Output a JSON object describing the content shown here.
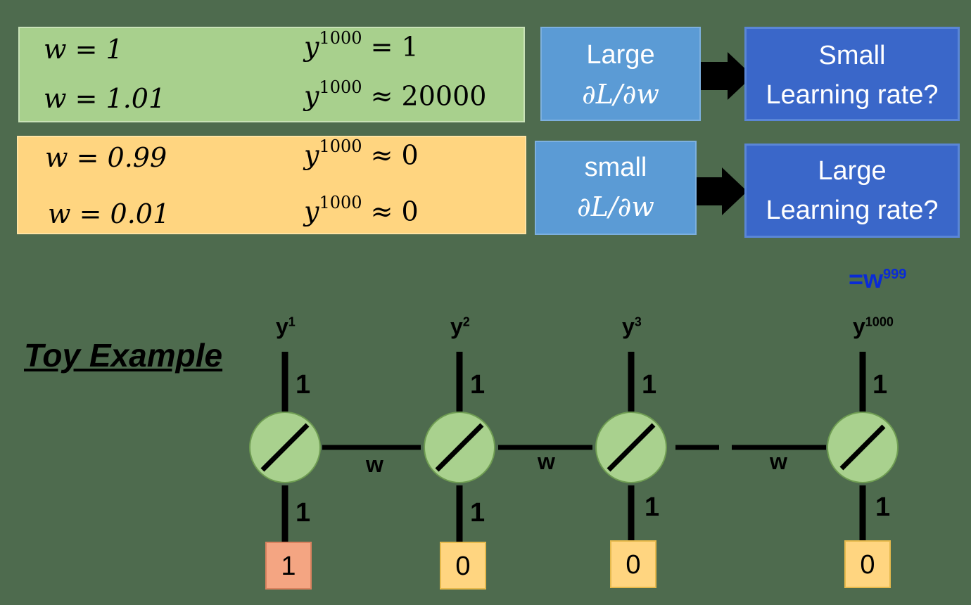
{
  "rows_top": [
    {
      "lhs": "w = 1",
      "rhs_base": "y",
      "rhs_sup": "1000",
      "rhs_tail": " = 1"
    },
    {
      "lhs": "w = 1.01",
      "rhs_base": "y",
      "rhs_sup": "1000",
      "rhs_tail": " ≈ 20000"
    }
  ],
  "rows_bottom": [
    {
      "lhs": "w = 0.99",
      "rhs_base": "y",
      "rhs_sup": "1000",
      "rhs_tail": " ≈ 0"
    },
    {
      "lhs": "w = 0.01",
      "rhs_base": "y",
      "rhs_sup": "1000",
      "rhs_tail": " ≈ 0"
    }
  ],
  "gradient_large": {
    "line1": "Large",
    "line2": "∂L/∂w"
  },
  "gradient_small": {
    "line1": "small",
    "line2": "∂L/∂w"
  },
  "lr_small": {
    "line1": "Small",
    "line2": "Learning rate?"
  },
  "lr_large": {
    "line1": "Large",
    "line2": "Learning rate?"
  },
  "toy_title": "Toy Example",
  "w999": {
    "base": "=w",
    "sup": "999"
  },
  "nodes": [
    {
      "y_base": "y",
      "y_sup": "1",
      "up_weight": "1",
      "down_weight": "1",
      "input": "1",
      "input_color": "#f4a582"
    },
    {
      "y_base": "y",
      "y_sup": "2",
      "up_weight": "1",
      "down_weight": "1",
      "input": "0",
      "input_color": "#ffd580"
    },
    {
      "y_base": "y",
      "y_sup": "3",
      "up_weight": "1",
      "down_weight": "1",
      "input": "0",
      "input_color": "#ffd580"
    },
    {
      "y_base": "y",
      "y_sup": "1000",
      "up_weight": "1",
      "down_weight": "1",
      "input": "0",
      "input_color": "#ffd580"
    }
  ],
  "recurrent_labels": [
    "w",
    "w",
    "w"
  ],
  "colors": {
    "background": "#4e6b4e",
    "green_panel": "#a8d08d",
    "orange_panel": "#ffd580",
    "light_blue": "#5b9bd5",
    "dark_blue": "#3a67c9",
    "node_fill": "#a9d18e",
    "highlight_text": "#0a2bd6"
  }
}
